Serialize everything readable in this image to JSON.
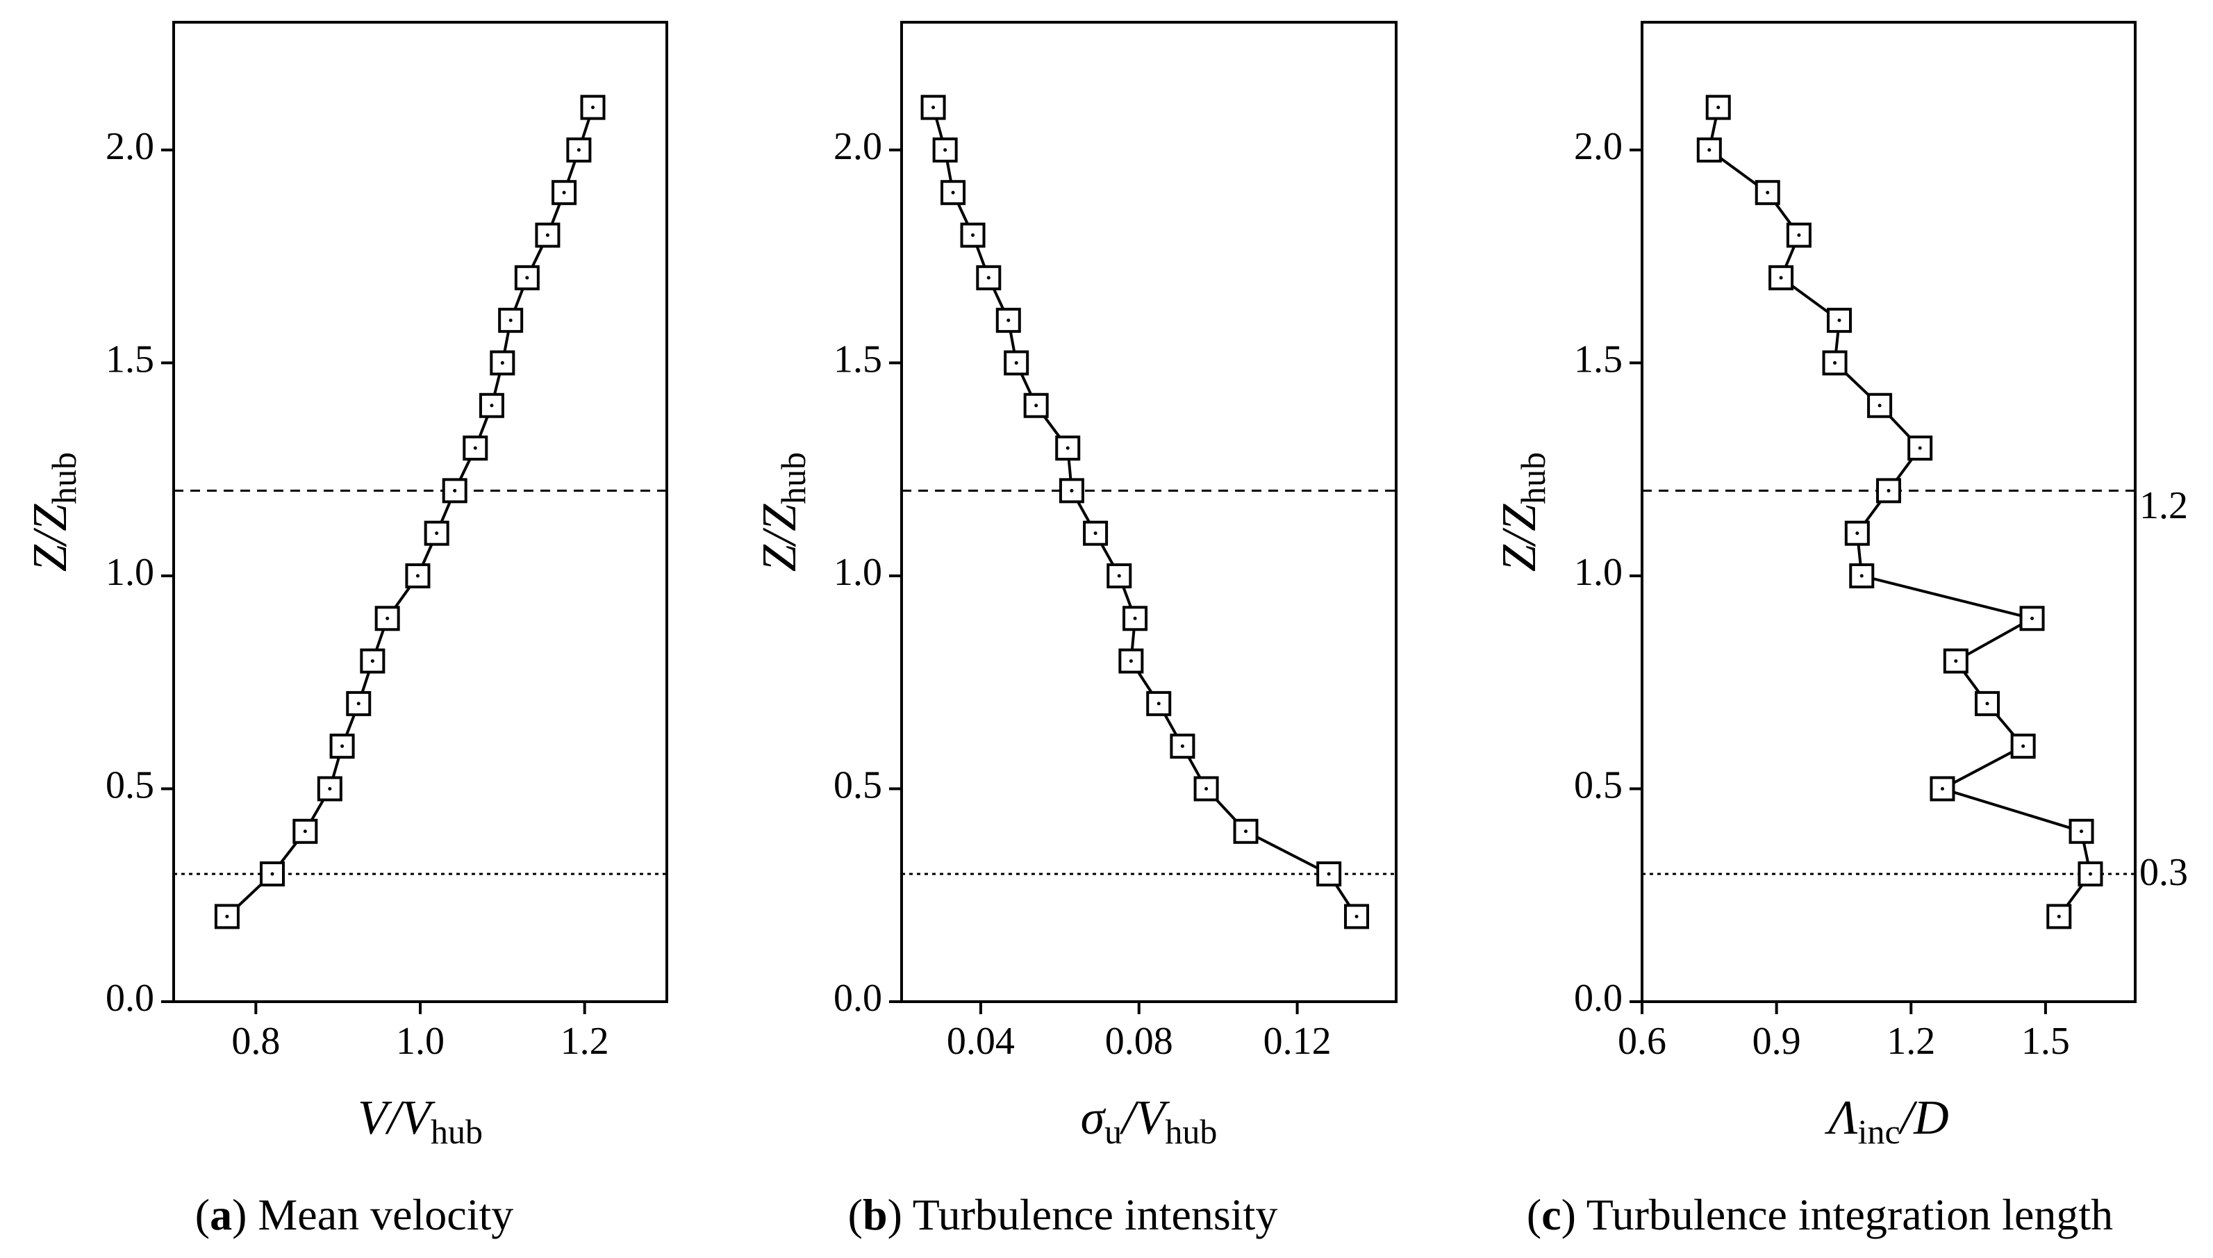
{
  "figure": {
    "panels": [
      {
        "caption_letter": "a",
        "caption_text": "Mean velocity",
        "ylabel": {
          "main": "Z/Z",
          "sub": "hub"
        },
        "xlabel": {
          "main": "V/V",
          "sub": "hub",
          "greek": ""
        }
      },
      {
        "caption_letter": "b",
        "caption_text": "Turbulence intensity",
        "ylabel": {
          "main": "Z/Z",
          "sub": "hub"
        },
        "xlabel": {
          "main": "/V",
          "sub": "u",
          "sub2": "hub",
          "greek": "σ"
        }
      },
      {
        "caption_letter": "c",
        "caption_text": "Turbulence integration length",
        "ylabel": {
          "main": "Z/Z",
          "sub": "hub"
        },
        "xlabel": {
          "main": "/D",
          "sub": "inc",
          "greek": "Λ"
        }
      }
    ],
    "reference_lines": [
      {
        "y": 1.2,
        "label": "1.2",
        "style": "dashed"
      },
      {
        "y": 0.3,
        "label": "0.3",
        "style": "dotted"
      }
    ]
  },
  "chart_data": [
    {
      "type": "line",
      "title": "Mean velocity",
      "xlabel": "V/V_hub",
      "ylabel": "Z/Z_hub",
      "xlim": [
        0.7,
        1.3
      ],
      "ylim": [
        0.0,
        2.3
      ],
      "xticks": [
        0.8,
        1.0,
        1.2
      ],
      "xtick_labels": [
        "0.8",
        "1.0",
        "1.2"
      ],
      "yticks": [
        0.0,
        0.5,
        1.0,
        1.5,
        2.0
      ],
      "ytick_labels": [
        "0.0",
        "0.5",
        "1.0",
        "1.5",
        "2.0"
      ],
      "marker": "square",
      "series": [
        {
          "name": "V/V_hub",
          "x": [
            0.765,
            0.82,
            0.86,
            0.89,
            0.905,
            0.925,
            0.942,
            0.96,
            0.997,
            1.02,
            1.042,
            1.067,
            1.087,
            1.1,
            1.11,
            1.13,
            1.155,
            1.175,
            1.193,
            1.21
          ],
          "y": [
            0.2,
            0.3,
            0.4,
            0.5,
            0.6,
            0.7,
            0.8,
            0.9,
            1.0,
            1.1,
            1.2,
            1.3,
            1.4,
            1.5,
            1.6,
            1.7,
            1.8,
            1.9,
            2.0,
            2.1
          ]
        }
      ]
    },
    {
      "type": "line",
      "title": "Turbulence intensity",
      "xlabel": "σu/V_hub",
      "ylabel": "Z/Z_hub",
      "xlim": [
        0.02,
        0.145
      ],
      "ylim": [
        0.0,
        2.3
      ],
      "xticks": [
        0.04,
        0.08,
        0.12
      ],
      "xtick_labels": [
        "0.04",
        "0.08",
        "0.12"
      ],
      "yticks": [
        0.0,
        0.5,
        1.0,
        1.5,
        2.0
      ],
      "ytick_labels": [
        "0.0",
        "0.5",
        "1.0",
        "1.5",
        "2.0"
      ],
      "marker": "square",
      "series": [
        {
          "name": "σu/V_hub",
          "x": [
            0.135,
            0.128,
            0.107,
            0.097,
            0.091,
            0.085,
            0.078,
            0.079,
            0.075,
            0.069,
            0.063,
            0.062,
            0.054,
            0.049,
            0.047,
            0.042,
            0.038,
            0.033,
            0.031,
            0.028
          ],
          "y": [
            0.2,
            0.3,
            0.4,
            0.5,
            0.6,
            0.7,
            0.8,
            0.9,
            1.0,
            1.1,
            1.2,
            1.3,
            1.4,
            1.5,
            1.6,
            1.7,
            1.8,
            1.9,
            2.0,
            2.1
          ]
        }
      ]
    },
    {
      "type": "line",
      "title": "Turbulence integration length",
      "xlabel": "Λinc/D",
      "ylabel": "Z/Z_hub",
      "xlim": [
        0.6,
        1.7
      ],
      "ylim": [
        0.0,
        2.3
      ],
      "xticks": [
        0.6,
        0.9,
        1.2,
        1.5
      ],
      "xtick_labels": [
        "0.6",
        "0.9",
        "1.2",
        "1.5"
      ],
      "yticks": [
        0.0,
        0.5,
        1.0,
        1.5,
        2.0
      ],
      "ytick_labels": [
        "0.0",
        "0.5",
        "1.0",
        "1.5",
        "2.0"
      ],
      "marker": "square",
      "series": [
        {
          "name": "Λinc/D",
          "x": [
            1.53,
            1.6,
            1.58,
            1.27,
            1.45,
            1.37,
            1.3,
            1.47,
            1.09,
            1.08,
            1.15,
            1.22,
            1.13,
            1.03,
            1.04,
            0.91,
            0.95,
            0.88,
            0.75,
            0.77
          ],
          "y": [
            0.2,
            0.3,
            0.4,
            0.5,
            0.6,
            0.7,
            0.8,
            0.9,
            1.0,
            1.1,
            1.2,
            1.3,
            1.4,
            1.5,
            1.6,
            1.7,
            1.8,
            1.9,
            2.0,
            2.1
          ]
        }
      ]
    }
  ]
}
